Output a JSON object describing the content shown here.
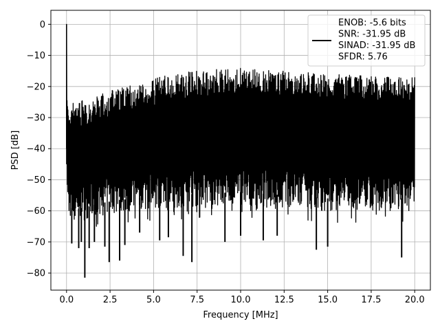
{
  "chart_data": {
    "type": "line",
    "title": "",
    "xlabel": "Frequency [MHz]",
    "ylabel": "PSD [dB]",
    "xlim": [
      -0.9,
      20.9
    ],
    "ylim": [
      -85.5,
      4.5
    ],
    "xticks": [
      0.0,
      2.5,
      5.0,
      7.5,
      10.0,
      12.5,
      15.0,
      17.5,
      20.0
    ],
    "xtick_labels": [
      "0.0",
      "2.5",
      "5.0",
      "7.5",
      "10.0",
      "12.5",
      "15.0",
      "17.5",
      "20.0"
    ],
    "yticks": [
      0,
      -10,
      -20,
      -30,
      -40,
      -50,
      -60,
      -70,
      -80
    ],
    "ytick_labels": [
      "0",
      "−10",
      "−20",
      "−30",
      "−40",
      "−50",
      "−60",
      "−70",
      "−80"
    ],
    "grid": true,
    "legend_position": "top-right",
    "legend_lines": [
      "ENOB: -5.6 bits",
      "SNR: -31.95 dB",
      "SINAD: -31.95 dB",
      "SFDR: 5.76"
    ],
    "series": [
      {
        "color": "#000000",
        "peak": {
          "x": 0.0,
          "y": 0.0
        },
        "envelope_upper": {
          "x": [
            0.0,
            0.5,
            1.0,
            2.0,
            3.0,
            4.0,
            5.0,
            6.0,
            7.5,
            10.0,
            12.5,
            15.0,
            17.5,
            20.0
          ],
          "y": [
            -24.5,
            -25.0,
            -24.5,
            -22.5,
            -20.5,
            -19.0,
            -17.5,
            -16.0,
            -15.0,
            -14.0,
            -15.0,
            -16.0,
            -16.5,
            -17.0
          ]
        },
        "envelope_lower": {
          "x": [
            0.0,
            0.5,
            1.0,
            2.0,
            3.0,
            4.0,
            5.0,
            7.5,
            10.0,
            12.5,
            15.0,
            17.5,
            20.0
          ],
          "y": [
            -62.5,
            -63.5,
            -63.0,
            -61.5,
            -60.5,
            -60.0,
            -59.5,
            -58.5,
            -58.0,
            -59.0,
            -60.0,
            -60.0,
            -60.0
          ]
        },
        "dips": [
          {
            "x": 0.3,
            "y": -70.5
          },
          {
            "x": 0.7,
            "y": -72.0
          },
          {
            "x": 0.85,
            "y": -70.0
          },
          {
            "x": 1.05,
            "y": -81.5
          },
          {
            "x": 1.3,
            "y": -72.0
          },
          {
            "x": 1.6,
            "y": -70.0
          },
          {
            "x": 2.2,
            "y": -71.5
          },
          {
            "x": 2.45,
            "y": -76.5
          },
          {
            "x": 3.05,
            "y": -76.0
          },
          {
            "x": 3.35,
            "y": -71.0
          },
          {
            "x": 4.2,
            "y": -67.0
          },
          {
            "x": 5.35,
            "y": -69.5
          },
          {
            "x": 5.85,
            "y": -68.5
          },
          {
            "x": 6.7,
            "y": -74.5
          },
          {
            "x": 7.2,
            "y": -76.5
          },
          {
            "x": 9.1,
            "y": -70.0
          },
          {
            "x": 10.0,
            "y": -68.0
          },
          {
            "x": 11.3,
            "y": -69.5
          },
          {
            "x": 12.1,
            "y": -68.0
          },
          {
            "x": 14.35,
            "y": -72.5
          },
          {
            "x": 15.0,
            "y": -71.5
          },
          {
            "x": 19.25,
            "y": -75.0
          }
        ],
        "noise_sample_points": 1600,
        "noise_seed": 7
      }
    ]
  }
}
